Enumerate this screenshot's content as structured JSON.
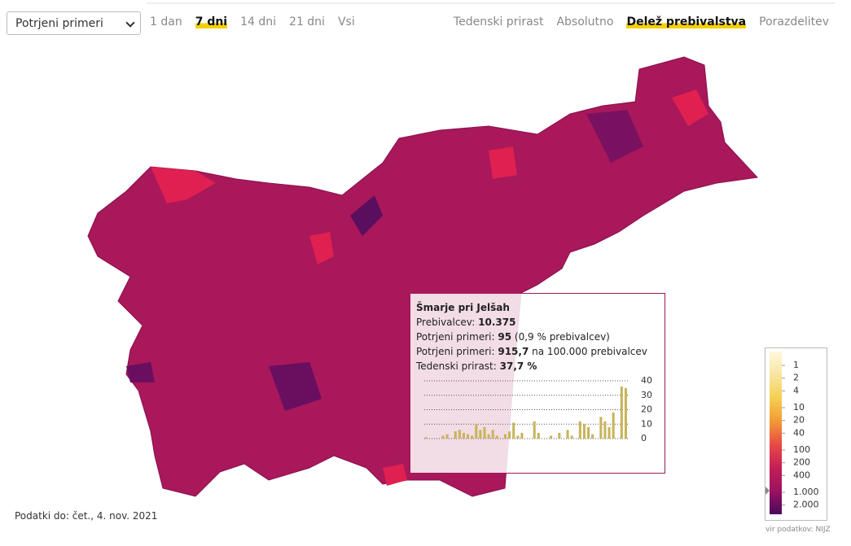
{
  "controls": {
    "select": "Potrjeni primeri",
    "periods": [
      "1 dan",
      "7 dni",
      "14 dni",
      "21 dni",
      "Vsi"
    ],
    "active_period": 1,
    "views": [
      "Tedenski prirast",
      "Absolutno",
      "Delež prebivalstva",
      "Porazdelitev"
    ],
    "active_view": 2
  },
  "tooltip": {
    "name": "Šmarje pri Jelšah",
    "rows": [
      {
        "label": "Prebivalcev:",
        "value": "10.375",
        "note": ""
      },
      {
        "label": "Potrjeni primeri:",
        "value": "95",
        "note": "(0,9 % prebivalcev)"
      },
      {
        "label": "Potrjeni primeri:",
        "value": "915,7",
        "note": "na 100.000 prebivalcev"
      },
      {
        "label": "Tedenski prirast:",
        "value": "37,7 %",
        "note": ""
      }
    ],
    "rate": {
      "value": 915.7,
      "label": "915,7"
    },
    "chart": {
      "type": "bar",
      "color": "#c8b45a",
      "values": [
        1,
        0,
        0,
        0,
        2,
        3,
        0,
        5,
        6,
        4,
        3,
        2,
        10,
        6,
        8,
        3,
        6,
        2,
        0,
        3,
        5,
        11,
        2,
        4,
        0,
        0,
        12,
        4,
        0,
        0,
        2,
        0,
        4,
        0,
        6,
        2,
        0,
        12,
        10,
        8,
        3,
        0,
        15,
        12,
        8,
        18,
        0,
        36,
        35
      ],
      "ylim": [
        0,
        40
      ],
      "yticks": [
        0,
        10,
        20,
        30,
        40
      ],
      "grid": true
    }
  },
  "legend": {
    "scale": "log",
    "lim": [
      0.47,
      3300
    ],
    "ticks": [
      1,
      2,
      4,
      10,
      20,
      40,
      100,
      200,
      400,
      {
        "value": 1000,
        "label": "1.000"
      },
      {
        "value": 2000,
        "label": "2.000"
      }
    ],
    "colors": [
      "#fff8dc",
      "#f7e6a0",
      "#f5cf50",
      "#f29a35",
      "#e84a45",
      "#c41f55",
      "#9a1260",
      "#4a0a5e"
    ]
  },
  "footer": {
    "date": "Podatki do: čet., 4. nov. 2021",
    "source": "vir podatkov: NIJZ"
  }
}
